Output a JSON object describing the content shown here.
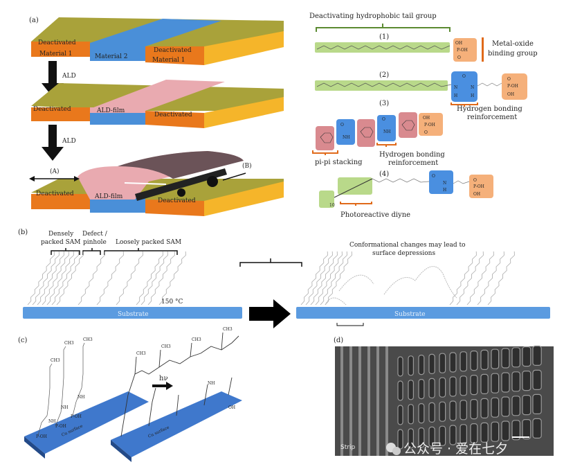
{
  "panel_a": {
    "label": "(a)",
    "step_label": "ALD",
    "slab1": {
      "left_top": "Deactivated",
      "left_bottom": "Material 1",
      "middle": "Material 2",
      "right_top": "Deactivated",
      "right_bottom": "Material 1"
    },
    "slab2": {
      "left": "Deactivated",
      "middle": "ALD-film",
      "right": "Deactivated"
    },
    "slab3": {
      "marker_a": "(A)",
      "marker_b": "(B)",
      "left": "Deactivated",
      "middle": "ALD-film",
      "right": "Deactivated"
    },
    "colors": {
      "deactivated_top": "#a9a23a",
      "material1": "#e9781c",
      "material2": "#4a8fd8",
      "ald_film": "#e9aab0",
      "side": "#f5b52a"
    }
  },
  "molecules": {
    "tail_title": "Deactivating hydrophobic tail group",
    "m1": {
      "label": "(1)",
      "head": [
        "OH",
        "P-OH",
        "O"
      ],
      "binding_label": [
        "Metal-oxide",
        "binding group"
      ]
    },
    "m2": {
      "label": "(2)",
      "urea": [
        "O",
        "N",
        "N",
        "H",
        "H"
      ],
      "head": [
        "O",
        "P-OH",
        "OH"
      ],
      "hbond_label": [
        "Hydrogen bonding",
        "reinforcement"
      ]
    },
    "m3": {
      "label": "(3)",
      "amide1": [
        "O",
        "NH"
      ],
      "amide2": [
        "O",
        "NH"
      ],
      "head": [
        "OH",
        "P-OH",
        "O"
      ],
      "pi_label": "pi-pi stacking",
      "hbond_label": [
        "Hydrogen bonding",
        "reinforcement"
      ]
    },
    "m4": {
      "label": "(4)",
      "subscript": "10",
      "amide": [
        "O",
        "N",
        "H"
      ],
      "head": [
        "O",
        "P-OH",
        "OH"
      ],
      "diyne_label": "Photoreactive diyne"
    },
    "colors": {
      "tail": "#b9d98a",
      "urea": "#4a8fe0",
      "phosphonate": "#f5b07a",
      "aromatic": "#d98a8f",
      "bracket": "#e06a1a"
    }
  },
  "panel_b": {
    "label": "(b)",
    "dense_label": [
      "Densely",
      "packed SAM"
    ],
    "defect_label": [
      "Defect /",
      "pinhole"
    ],
    "loose_label": "Loosely packed SAM",
    "substrate_label": "Substrate",
    "heat_label": "150 °C",
    "conformation_label": [
      "Conformational changes may lead to",
      "surface depressions"
    ],
    "colors": {
      "substrate": "#5b9be0"
    }
  },
  "panel_c": {
    "label": "(c)",
    "light_label": "hν",
    "surface_label": "Cu surface",
    "groups": [
      "CH3",
      "11",
      "8",
      "NH",
      "O",
      "P-OH",
      "OH"
    ]
  },
  "panel_d": {
    "label": "(d)",
    "image_label": "Strip",
    "watermark": "公众号 · 爱在七夕"
  }
}
